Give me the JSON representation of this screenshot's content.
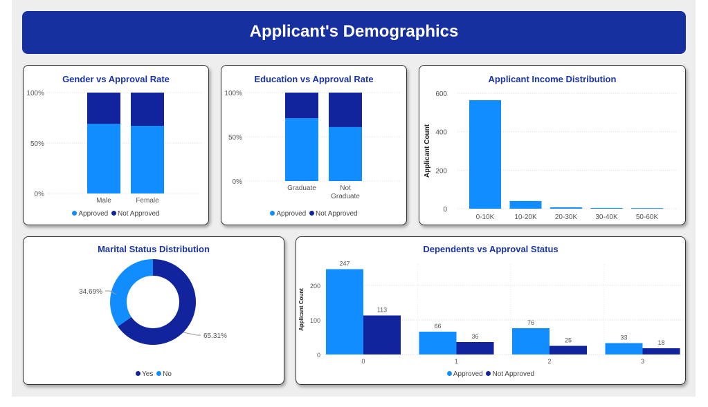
{
  "banner": {
    "title": "Applicant's Demographics"
  },
  "colors": {
    "approved": "#118dff",
    "not_approved": "#12239e",
    "yes": "#12239e",
    "no": "#118dff",
    "title": "#1a34a6",
    "banner": "#1730a0"
  },
  "chart_data": [
    {
      "id": "gender",
      "type": "bar",
      "stacked": "100%",
      "title": "Gender vs Approval Rate",
      "categories": [
        "Male",
        "Female"
      ],
      "series": [
        {
          "name": "Approved",
          "values": [
            69,
            67
          ]
        },
        {
          "name": "Not Approved",
          "values": [
            31,
            33
          ]
        }
      ],
      "yticks": [
        "0%",
        "50%",
        "100%"
      ],
      "ylim": [
        0,
        100
      ],
      "legend": "bottom",
      "grid": true
    },
    {
      "id": "education",
      "type": "bar",
      "stacked": "100%",
      "title": "Education vs Approval Rate",
      "categories": [
        "Graduate",
        "Not Graduate"
      ],
      "series": [
        {
          "name": "Approved",
          "values": [
            71,
            61
          ]
        },
        {
          "name": "Not Approved",
          "values": [
            29,
            39
          ]
        }
      ],
      "yticks": [
        "0%",
        "50%",
        "100%"
      ],
      "ylim": [
        0,
        100
      ],
      "legend": "bottom",
      "grid": true
    },
    {
      "id": "income",
      "type": "bar",
      "title": "Applicant Income Distribution",
      "ylabel": "Applicant Count",
      "categories": [
        "0-10K",
        "10-20K",
        "20-30K",
        "30-40K",
        "50-60K"
      ],
      "values": [
        564,
        40,
        7,
        4,
        3
      ],
      "yticks": [
        0,
        200,
        400,
        600
      ],
      "ylim": [
        0,
        600
      ],
      "grid": true
    },
    {
      "id": "marital",
      "type": "pie",
      "donut": true,
      "title": "Marital Status Distribution",
      "labels": [
        "Yes",
        "No"
      ],
      "values": [
        65.31,
        34.69
      ],
      "data_labels": [
        "65.31%",
        "34.69%"
      ],
      "legend": "bottom"
    },
    {
      "id": "dependents",
      "type": "bar",
      "title": "Dependents vs Approval Status",
      "ylabel": "Applicant Count",
      "categories": [
        "0",
        "1",
        "2",
        "3"
      ],
      "series": [
        {
          "name": "Approved",
          "values": [
            247,
            66,
            76,
            33
          ]
        },
        {
          "name": "Not Approved",
          "values": [
            113,
            36,
            25,
            18
          ]
        }
      ],
      "yticks": [
        0,
        100,
        200
      ],
      "ylim": [
        0,
        260
      ],
      "legend": "bottom",
      "grid": true
    }
  ]
}
